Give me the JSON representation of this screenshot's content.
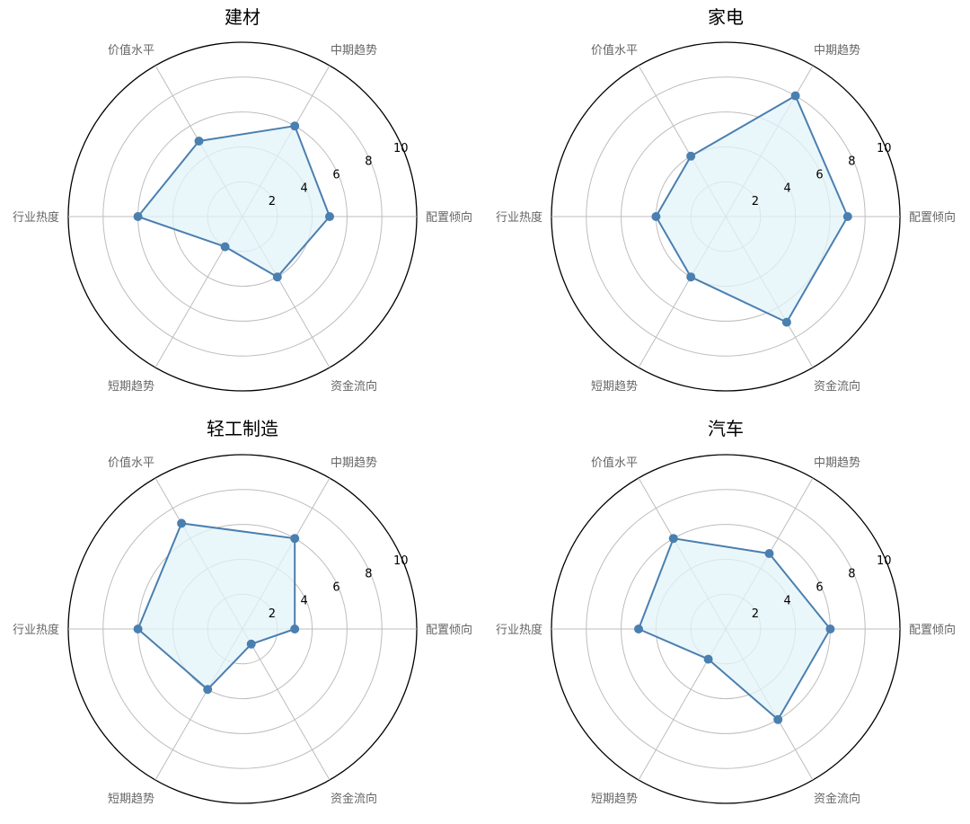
{
  "chart_data": [
    {
      "type": "radar",
      "title": "建材",
      "axes": [
        "配置倾向",
        "中期趋势",
        "价值水平",
        "行业热度",
        "短期趋势",
        "资金流向"
      ],
      "values": [
        5,
        6,
        5,
        6,
        2,
        4
      ],
      "rlim": [
        0,
        10
      ],
      "rticks": [
        2,
        4,
        6,
        8,
        10
      ],
      "grid": true
    },
    {
      "type": "radar",
      "title": "家电",
      "axes": [
        "配置倾向",
        "中期趋势",
        "价值水平",
        "行业热度",
        "短期趋势",
        "资金流向"
      ],
      "values": [
        7,
        8,
        4,
        4,
        4,
        7
      ],
      "rlim": [
        0,
        10
      ],
      "rticks": [
        2,
        4,
        6,
        8,
        10
      ],
      "grid": true
    },
    {
      "type": "radar",
      "title": "轻工制造",
      "axes": [
        "配置倾向",
        "中期趋势",
        "价值水平",
        "行业热度",
        "短期趋势",
        "资金流向"
      ],
      "values": [
        3,
        6,
        7,
        6,
        4,
        1
      ],
      "rlim": [
        0,
        10
      ],
      "rticks": [
        2,
        4,
        6,
        8,
        10
      ],
      "grid": true
    },
    {
      "type": "radar",
      "title": "汽车",
      "axes": [
        "配置倾向",
        "中期趋势",
        "价值水平",
        "行业热度",
        "短期趋势",
        "资金流向"
      ],
      "values": [
        6,
        5,
        6,
        5,
        2,
        6
      ],
      "rlim": [
        0,
        10
      ],
      "rticks": [
        2,
        4,
        6,
        8,
        10
      ],
      "grid": true
    }
  ],
  "colors": {
    "line": "#4a7fb0",
    "fill": "#e3f4f8",
    "grid": "#bdbdbd",
    "outer": "#000000"
  }
}
